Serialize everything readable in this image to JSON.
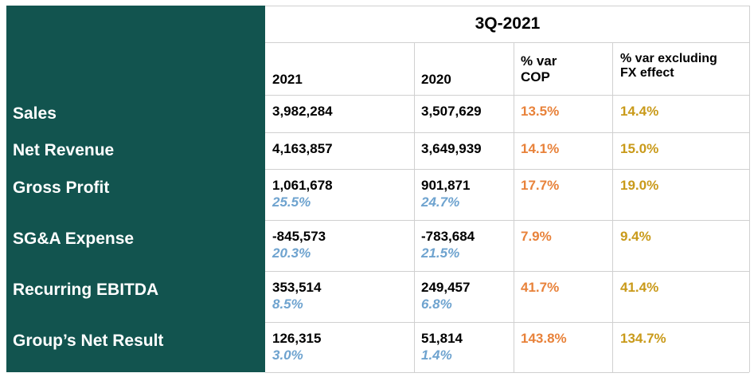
{
  "header": {
    "period": "3Q-2021",
    "columns": [
      "2021",
      "2020",
      "% var\nCOP",
      "% var excluding\nFX effect"
    ]
  },
  "colors": {
    "panel": "#12544f",
    "margin_pct": "#6ea3cf",
    "var_cop": "#e8823a",
    "var_fx": "#c99a1a"
  },
  "rows": [
    {
      "label": "Sales",
      "v2021": "3,982,284",
      "v2020": "3,507,629",
      "var_cop": "13.5%",
      "var_fx": "14.4%"
    },
    {
      "label": "Net Revenue",
      "v2021": "4,163,857",
      "v2020": "3,649,939",
      "var_cop": "14.1%",
      "var_fx": "15.0%"
    },
    {
      "label": "Gross Profit",
      "v2021": "1,061,678",
      "p2021": "25.5%",
      "v2020": "901,871",
      "p2020": "24.7%",
      "var_cop": "17.7%",
      "var_fx": "19.0%"
    },
    {
      "label": "SG&A Expense",
      "v2021": "-845,573",
      "p2021": "20.3%",
      "v2020": "-783,684",
      "p2020": "21.5%",
      "var_cop": "7.9%",
      "var_fx": "9.4%"
    },
    {
      "label": "Recurring EBITDA",
      "v2021": "353,514",
      "p2021": "8.5%",
      "v2020": "249,457",
      "p2020": "6.8%",
      "var_cop": "41.7%",
      "var_fx": "41.4%"
    },
    {
      "label": "Group’s Net Result",
      "v2021": "126,315",
      "p2021": "3.0%",
      "v2020": "51,814",
      "p2020": "1.4%",
      "var_cop": "143.8%",
      "var_fx": "134.7%"
    }
  ]
}
